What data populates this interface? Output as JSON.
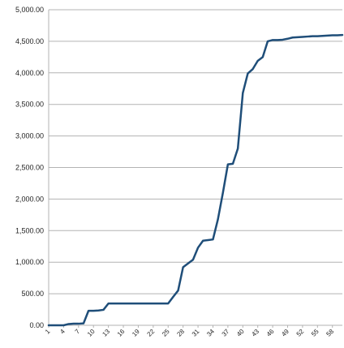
{
  "chart_data": {
    "type": "line",
    "title": "",
    "xlabel": "",
    "ylabel": "",
    "ylim": [
      0,
      5000
    ],
    "y_ticks": [
      "0.00",
      "500.00",
      "1,000.00",
      "1,500.00",
      "2,000.00",
      "2,500.00",
      "3,000.00",
      "3,500.00",
      "4,000.00",
      "4,500.00",
      "5,000.00"
    ],
    "y_tick_values": [
      0,
      500,
      1000,
      1500,
      2000,
      2500,
      3000,
      3500,
      4000,
      4500,
      5000
    ],
    "x_tick_labels": [
      "1",
      "4",
      "7",
      "10",
      "13",
      "16",
      "19",
      "22",
      "25",
      "28",
      "31",
      "34",
      "37",
      "40",
      "43",
      "46",
      "49",
      "52",
      "55",
      "58"
    ],
    "x_tick_values": [
      1,
      4,
      7,
      10,
      13,
      16,
      19,
      22,
      25,
      28,
      31,
      34,
      37,
      40,
      43,
      46,
      49,
      52,
      55,
      58
    ],
    "xlim": [
      1,
      60
    ],
    "grid": true,
    "legend": "none",
    "line_color": "#1f4e79",
    "series": [
      {
        "values": [
          [
            1,
            0
          ],
          [
            2,
            0
          ],
          [
            3,
            0
          ],
          [
            4,
            0
          ],
          [
            5,
            20
          ],
          [
            6,
            25
          ],
          [
            7,
            25
          ],
          [
            8,
            30
          ],
          [
            9,
            230
          ],
          [
            10,
            230
          ],
          [
            11,
            235
          ],
          [
            12,
            245
          ],
          [
            13,
            345
          ],
          [
            14,
            345
          ],
          [
            15,
            345
          ],
          [
            16,
            345
          ],
          [
            17,
            345
          ],
          [
            18,
            345
          ],
          [
            19,
            345
          ],
          [
            20,
            345
          ],
          [
            21,
            345
          ],
          [
            22,
            345
          ],
          [
            23,
            345
          ],
          [
            24,
            345
          ],
          [
            25,
            345
          ],
          [
            26,
            450
          ],
          [
            27,
            550
          ],
          [
            28,
            920
          ],
          [
            29,
            980
          ],
          [
            30,
            1040
          ],
          [
            31,
            1230
          ],
          [
            32,
            1340
          ],
          [
            33,
            1350
          ],
          [
            34,
            1360
          ],
          [
            35,
            1680
          ],
          [
            36,
            2100
          ],
          [
            37,
            2550
          ],
          [
            38,
            2560
          ],
          [
            39,
            2800
          ],
          [
            40,
            3680
          ],
          [
            41,
            3990
          ],
          [
            42,
            4060
          ],
          [
            43,
            4190
          ],
          [
            44,
            4250
          ],
          [
            45,
            4500
          ],
          [
            46,
            4520
          ],
          [
            47,
            4520
          ],
          [
            48,
            4525
          ],
          [
            49,
            4540
          ],
          [
            50,
            4560
          ],
          [
            51,
            4565
          ],
          [
            52,
            4570
          ],
          [
            53,
            4575
          ],
          [
            54,
            4580
          ],
          [
            55,
            4580
          ],
          [
            56,
            4585
          ],
          [
            57,
            4590
          ],
          [
            58,
            4595
          ],
          [
            59,
            4595
          ],
          [
            60,
            4600
          ]
        ]
      }
    ]
  }
}
